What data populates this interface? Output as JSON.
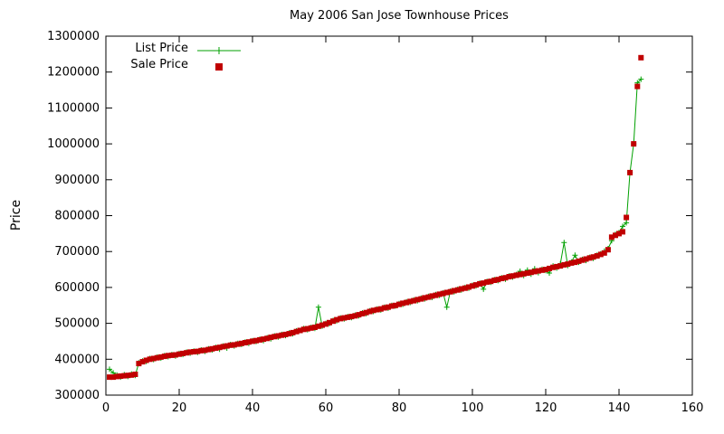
{
  "colors": {
    "list_price": "#00a000",
    "sale_price": "#c00000",
    "axis": "#000000",
    "background": "#ffffff"
  },
  "chart_data": {
    "type": "line",
    "title": "May 2006 San Jose Townhouse Prices",
    "xlabel": "",
    "ylabel": "Price",
    "xlim": [
      0,
      160
    ],
    "ylim": [
      300000,
      1300000
    ],
    "xticks": [
      0,
      20,
      40,
      60,
      80,
      100,
      120,
      140,
      160
    ],
    "yticks": [
      300000,
      400000,
      500000,
      600000,
      700000,
      800000,
      900000,
      1000000,
      1100000,
      1200000,
      1300000
    ],
    "grid": false,
    "legend_position": "top-left-inside",
    "x": [
      1,
      2,
      3,
      4,
      5,
      6,
      7,
      8,
      9,
      10,
      11,
      12,
      13,
      14,
      15,
      16,
      17,
      18,
      19,
      20,
      21,
      22,
      23,
      24,
      25,
      26,
      27,
      28,
      29,
      30,
      31,
      32,
      33,
      34,
      35,
      36,
      37,
      38,
      39,
      40,
      41,
      42,
      43,
      44,
      45,
      46,
      47,
      48,
      49,
      50,
      51,
      52,
      53,
      54,
      55,
      56,
      57,
      58,
      59,
      60,
      61,
      62,
      63,
      64,
      65,
      66,
      67,
      68,
      69,
      70,
      71,
      72,
      73,
      74,
      75,
      76,
      77,
      78,
      79,
      80,
      81,
      82,
      83,
      84,
      85,
      86,
      87,
      88,
      89,
      90,
      91,
      92,
      93,
      94,
      95,
      96,
      97,
      98,
      99,
      100,
      101,
      102,
      103,
      104,
      105,
      106,
      107,
      108,
      109,
      110,
      111,
      112,
      113,
      114,
      115,
      116,
      117,
      118,
      119,
      120,
      121,
      122,
      123,
      124,
      125,
      126,
      127,
      128,
      129,
      130,
      131,
      132,
      133,
      134,
      135,
      136,
      137,
      138,
      139,
      140,
      141,
      142,
      143,
      144,
      145,
      146
    ],
    "series": [
      {
        "name": "List Price",
        "color": "#00a000",
        "marker": "plus",
        "line": true,
        "values": [
          372000,
          362000,
          356000,
          350000,
          357000,
          352000,
          359000,
          355000,
          390000,
          395000,
          394000,
          402000,
          399000,
          406000,
          403000,
          410000,
          407000,
          413000,
          409000,
          416000,
          413000,
          420000,
          417000,
          423000,
          419000,
          426000,
          422000,
          429000,
          426000,
          433000,
          428000,
          437000,
          431000,
          441000,
          437000,
          444000,
          441000,
          448000,
          444000,
          452000,
          449000,
          456000,
          452000,
          460000,
          457000,
          465000,
          462000,
          469000,
          466000,
          473000,
          471000,
          479000,
          480000,
          486000,
          482000,
          489000,
          486000,
          545000,
          492000,
          500000,
          499000,
          508000,
          507000,
          515000,
          512000,
          519000,
          516000,
          523000,
          521000,
          529000,
          527000,
          535000,
          533000,
          540000,
          537000,
          545000,
          542000,
          550000,
          548000,
          555000,
          553000,
          560000,
          558000,
          565000,
          563000,
          570000,
          568000,
          575000,
          572000,
          580000,
          578000,
          585000,
          545000,
          590000,
          588000,
          595000,
          593000,
          600000,
          598000,
          606000,
          604000,
          612000,
          595000,
          617000,
          614000,
          622000,
          619000,
          627000,
          623000,
          632000,
          629000,
          636000,
          645000,
          633000,
          648000,
          637000,
          652000,
          641000,
          651000,
          647000,
          640000,
          660000,
          654000,
          666000,
          725000,
          661000,
          671000,
          690000,
          670000,
          678000,
          675000,
          684000,
          681000,
          690000,
          694000,
          701000,
          708000,
          730000,
          748000,
          753000,
          770000,
          780000,
          920000,
          1000000,
          1170000,
          1180000
        ]
      },
      {
        "name": "Sale Price",
        "color": "#c00000",
        "marker": "square",
        "line": false,
        "values": [
          350000,
          350000,
          352000,
          353000,
          354000,
          355000,
          356000,
          358000,
          388000,
          393000,
          397000,
          400000,
          402000,
          404000,
          406000,
          408000,
          410000,
          411000,
          412000,
          414000,
          416000,
          418000,
          420000,
          421000,
          422000,
          424000,
          425000,
          427000,
          429000,
          431000,
          433000,
          435000,
          437000,
          439000,
          440000,
          442000,
          444000,
          446000,
          448000,
          450000,
          452000,
          454000,
          456000,
          458000,
          461000,
          463000,
          465000,
          467000,
          469000,
          471000,
          474000,
          477000,
          480000,
          483000,
          485000,
          487000,
          489000,
          492000,
          495000,
          498000,
          502000,
          506000,
          510000,
          513000,
          515000,
          517000,
          519000,
          521000,
          524000,
          527000,
          530000,
          533000,
          536000,
          538000,
          540000,
          543000,
          545000,
          548000,
          550000,
          553000,
          556000,
          558000,
          561000,
          563000,
          566000,
          568000,
          571000,
          573000,
          576000,
          578000,
          581000,
          583000,
          586000,
          588000,
          591000,
          593000,
          596000,
          598000,
          601000,
          604000,
          607000,
          610000,
          612000,
          615000,
          617000,
          620000,
          622000,
          625000,
          627000,
          630000,
          632000,
          634000,
          636000,
          638000,
          640000,
          642000,
          644000,
          646000,
          648000,
          650000,
          653000,
          656000,
          658000,
          660000,
          663000,
          665000,
          668000,
          670000,
          673000,
          676000,
          679000,
          682000,
          685000,
          688000,
          692000,
          696000,
          705000,
          740000,
          745000,
          750000,
          755000,
          795000,
          920000,
          1000000,
          1160000,
          1240000
        ]
      }
    ]
  }
}
